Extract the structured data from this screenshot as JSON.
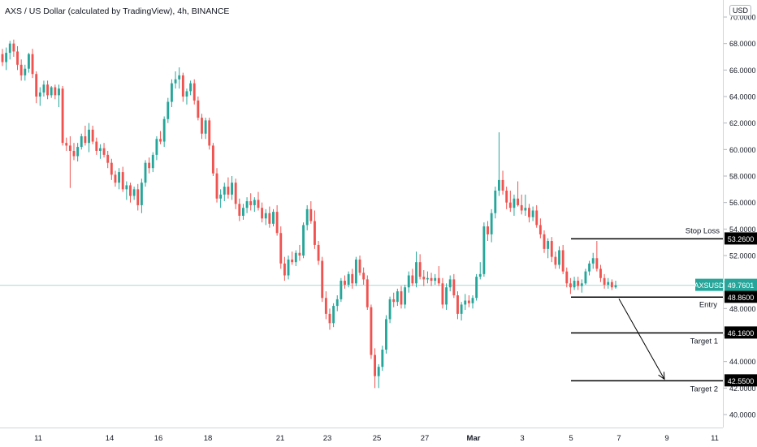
{
  "title": "AXS / US Dollar (calculated by TradingView), 4h, BINANCE",
  "currency_badge": "USD",
  "chart_data": {
    "type": "candlestick",
    "symbol": "AXSUSD",
    "ylim": [
      39.0,
      71.0
    ],
    "y_ticks": [
      "40.0000",
      "42.0000",
      "44.0000",
      "46.0000",
      "48.0000",
      "50.0000",
      "52.0000",
      "54.0000",
      "56.0000",
      "58.0000",
      "60.0000",
      "62.0000",
      "64.0000",
      "66.0000",
      "68.0000",
      "70.0000"
    ],
    "x_ticks": [
      "11",
      "14",
      "16",
      "18",
      "21",
      "23",
      "25",
      "27",
      "Mar",
      "3",
      "5",
      "7",
      "9",
      "11"
    ],
    "colors": {
      "up": "#26a69a",
      "down": "#ef5350",
      "level": "#000000",
      "current": "#26a69a",
      "price_line": "#a8dcd4"
    },
    "current_price": {
      "symbol": "AXSUSD",
      "value": "49.7601"
    },
    "levels": [
      {
        "name": "Stop Loss",
        "value": 53.26,
        "label": "53.2600"
      },
      {
        "name": "Entry",
        "value": 48.86,
        "label": "48.8600"
      },
      {
        "name": "Target 1",
        "value": 46.16,
        "label": "46.1600"
      },
      {
        "name": "Target 2",
        "value": 42.55,
        "label": "42.5500"
      }
    ],
    "candles": [
      [
        67.2,
        67.6,
        66.3,
        66.6
      ],
      [
        66.6,
        67.7,
        66.0,
        67.3
      ],
      [
        67.3,
        68.2,
        66.8,
        68.0
      ],
      [
        68.0,
        68.3,
        67.0,
        67.4
      ],
      [
        67.4,
        67.8,
        66.0,
        66.4
      ],
      [
        66.4,
        66.8,
        65.2,
        65.6
      ],
      [
        65.6,
        66.4,
        65.2,
        66.1
      ],
      [
        66.1,
        67.3,
        65.8,
        67.2
      ],
      [
        67.2,
        67.6,
        65.4,
        65.7
      ],
      [
        65.7,
        65.9,
        63.5,
        64.0
      ],
      [
        64.0,
        64.7,
        63.3,
        64.3
      ],
      [
        64.3,
        65.2,
        64.0,
        64.9
      ],
      [
        64.9,
        65.2,
        63.8,
        64.1
      ],
      [
        64.1,
        64.8,
        63.9,
        64.7
      ],
      [
        64.7,
        64.9,
        63.8,
        64.1
      ],
      [
        64.1,
        64.9,
        63.2,
        64.6
      ],
      [
        64.6,
        64.8,
        60.3,
        60.5
      ],
      [
        60.5,
        60.9,
        59.9,
        60.3
      ],
      [
        60.3,
        61.0,
        57.1,
        59.9
      ],
      [
        59.9,
        60.5,
        59.2,
        59.5
      ],
      [
        59.5,
        60.5,
        59.1,
        60.2
      ],
      [
        60.2,
        61.2,
        60.0,
        61.0
      ],
      [
        61.0,
        61.8,
        60.3,
        60.5
      ],
      [
        60.5,
        62.0,
        59.8,
        61.5
      ],
      [
        61.5,
        61.8,
        60.4,
        60.6
      ],
      [
        60.6,
        60.9,
        59.6,
        59.9
      ],
      [
        59.9,
        60.4,
        59.3,
        60.1
      ],
      [
        60.1,
        60.5,
        59.4,
        59.6
      ],
      [
        59.6,
        59.9,
        58.6,
        59.0
      ],
      [
        59.0,
        59.3,
        57.7,
        58.1
      ],
      [
        58.1,
        58.4,
        57.2,
        57.5
      ],
      [
        57.5,
        58.6,
        57.0,
        58.3
      ],
      [
        58.3,
        58.7,
        56.8,
        57.0
      ],
      [
        57.0,
        57.6,
        56.2,
        57.3
      ],
      [
        57.3,
        57.5,
        56.0,
        56.5
      ],
      [
        56.5,
        57.2,
        56.2,
        57.0
      ],
      [
        57.0,
        57.4,
        55.4,
        55.8
      ],
      [
        55.8,
        57.8,
        55.2,
        57.5
      ],
      [
        57.5,
        59.2,
        57.2,
        59.0
      ],
      [
        59.0,
        59.4,
        58.2,
        58.6
      ],
      [
        58.6,
        59.8,
        58.3,
        59.6
      ],
      [
        59.6,
        61.0,
        59.2,
        60.8
      ],
      [
        60.8,
        61.4,
        60.4,
        60.6
      ],
      [
        60.6,
        62.5,
        60.2,
        62.3
      ],
      [
        62.3,
        63.9,
        62.0,
        63.6
      ],
      [
        63.6,
        65.3,
        63.2,
        65.0
      ],
      [
        65.0,
        65.9,
        64.6,
        65.3
      ],
      [
        65.3,
        66.2,
        64.6,
        65.6
      ],
      [
        65.6,
        65.8,
        63.6,
        64.0
      ],
      [
        64.0,
        64.6,
        63.4,
        64.4
      ],
      [
        64.4,
        65.2,
        64.1,
        65.0
      ],
      [
        65.0,
        65.3,
        63.4,
        63.7
      ],
      [
        63.7,
        64.0,
        62.2,
        62.4
      ],
      [
        62.4,
        62.7,
        60.8,
        61.2
      ],
      [
        61.2,
        62.4,
        60.8,
        62.2
      ],
      [
        62.2,
        62.4,
        60.0,
        60.3
      ],
      [
        60.3,
        60.5,
        58.0,
        58.2
      ],
      [
        58.2,
        58.6,
        56.0,
        56.3
      ],
      [
        56.3,
        57.0,
        55.6,
        56.6
      ],
      [
        56.6,
        57.5,
        56.1,
        57.2
      ],
      [
        57.2,
        57.9,
        56.3,
        56.6
      ],
      [
        56.6,
        58.0,
        56.2,
        57.5
      ],
      [
        57.5,
        57.8,
        55.5,
        55.9
      ],
      [
        55.9,
        56.3,
        54.6,
        55.0
      ],
      [
        55.0,
        55.9,
        54.7,
        55.6
      ],
      [
        55.6,
        56.4,
        55.2,
        56.1
      ],
      [
        56.1,
        56.7,
        55.4,
        55.8
      ],
      [
        55.8,
        56.4,
        55.3,
        56.2
      ],
      [
        56.2,
        56.8,
        55.4,
        55.6
      ],
      [
        55.6,
        56.0,
        54.5,
        54.8
      ],
      [
        54.8,
        55.5,
        54.3,
        55.2
      ],
      [
        55.2,
        55.7,
        54.1,
        54.4
      ],
      [
        54.4,
        55.5,
        54.2,
        55.3
      ],
      [
        55.3,
        55.8,
        53.5,
        53.7
      ],
      [
        53.7,
        54.2,
        51.0,
        51.4
      ],
      [
        51.4,
        51.9,
        50.1,
        50.5
      ],
      [
        50.5,
        52.0,
        50.2,
        51.7
      ],
      [
        51.7,
        52.3,
        51.3,
        51.5
      ],
      [
        51.5,
        52.4,
        51.2,
        52.2
      ],
      [
        52.2,
        52.8,
        51.6,
        52.0
      ],
      [
        52.0,
        54.5,
        51.8,
        54.3
      ],
      [
        54.3,
        55.8,
        53.9,
        55.5
      ],
      [
        55.5,
        56.1,
        54.4,
        54.6
      ],
      [
        54.6,
        55.4,
        52.5,
        52.8
      ],
      [
        52.8,
        53.1,
        51.3,
        51.6
      ],
      [
        51.6,
        51.9,
        48.5,
        48.8
      ],
      [
        48.8,
        49.3,
        47.2,
        47.6
      ],
      [
        47.6,
        48.0,
        46.4,
        46.9
      ],
      [
        46.9,
        48.4,
        46.6,
        48.2
      ],
      [
        48.2,
        49.0,
        47.8,
        48.7
      ],
      [
        48.7,
        50.3,
        48.5,
        50.1
      ],
      [
        50.1,
        50.5,
        49.5,
        49.8
      ],
      [
        49.8,
        50.8,
        49.6,
        50.6
      ],
      [
        50.6,
        51.0,
        49.5,
        49.9
      ],
      [
        49.9,
        51.9,
        49.7,
        51.7
      ],
      [
        51.7,
        52.0,
        50.5,
        50.7
      ],
      [
        50.7,
        51.1,
        49.8,
        50.2
      ],
      [
        50.2,
        50.5,
        47.9,
        48.1
      ],
      [
        48.1,
        48.3,
        44.2,
        44.5
      ],
      [
        44.5,
        45.0,
        42.0,
        42.9
      ],
      [
        42.9,
        43.8,
        42.0,
        43.6
      ],
      [
        43.6,
        45.2,
        43.3,
        44.9
      ],
      [
        44.9,
        47.5,
        44.6,
        47.2
      ],
      [
        47.2,
        48.9,
        46.9,
        48.7
      ],
      [
        48.7,
        49.2,
        48.1,
        48.5
      ],
      [
        48.5,
        49.5,
        48.2,
        49.3
      ],
      [
        49.3,
        49.7,
        48.0,
        48.3
      ],
      [
        48.3,
        49.8,
        48.0,
        49.6
      ],
      [
        49.6,
        50.8,
        49.2,
        50.5
      ],
      [
        50.5,
        51.0,
        49.7,
        49.9
      ],
      [
        49.9,
        52.3,
        49.6,
        51.5
      ],
      [
        51.5,
        52.1,
        50.2,
        50.4
      ],
      [
        50.4,
        50.9,
        49.7,
        50.2
      ],
      [
        50.2,
        50.8,
        49.9,
        50.3
      ],
      [
        50.3,
        50.7,
        49.7,
        50.1
      ],
      [
        50.1,
        50.6,
        49.8,
        50.3
      ],
      [
        50.3,
        51.2,
        49.7,
        49.9
      ],
      [
        49.9,
        50.3,
        48.0,
        48.3
      ],
      [
        48.3,
        49.9,
        47.9,
        49.6
      ],
      [
        49.6,
        50.5,
        49.3,
        50.2
      ],
      [
        50.2,
        50.6,
        48.8,
        49.0
      ],
      [
        49.0,
        49.3,
        47.2,
        47.6
      ],
      [
        47.6,
        48.5,
        47.1,
        48.3
      ],
      [
        48.3,
        49.1,
        47.9,
        48.6
      ],
      [
        48.6,
        49.0,
        48.1,
        48.4
      ],
      [
        48.4,
        49.0,
        48.0,
        48.8
      ],
      [
        48.8,
        50.6,
        48.6,
        50.4
      ],
      [
        50.4,
        51.5,
        50.2,
        50.6
      ],
      [
        50.6,
        54.5,
        50.4,
        54.2
      ],
      [
        54.2,
        54.6,
        53.1,
        53.6
      ],
      [
        53.6,
        55.5,
        53.0,
        55.2
      ],
      [
        55.2,
        57.2,
        54.8,
        56.9
      ],
      [
        56.9,
        61.3,
        56.5,
        57.7
      ],
      [
        57.7,
        58.4,
        56.6,
        56.9
      ],
      [
        56.9,
        57.2,
        55.5,
        56.0
      ],
      [
        56.0,
        56.9,
        55.3,
        55.6
      ],
      [
        55.6,
        56.6,
        55.0,
        56.3
      ],
      [
        56.3,
        57.6,
        55.7,
        55.8
      ],
      [
        55.8,
        56.6,
        55.1,
        55.4
      ],
      [
        55.4,
        56.6,
        55.0,
        55.6
      ],
      [
        55.6,
        55.9,
        54.5,
        54.9
      ],
      [
        54.9,
        55.7,
        54.6,
        55.4
      ],
      [
        55.4,
        55.8,
        54.1,
        54.3
      ],
      [
        54.3,
        54.8,
        53.3,
        53.6
      ],
      [
        53.6,
        53.9,
        52.2,
        52.5
      ],
      [
        52.5,
        53.3,
        51.8,
        53.1
      ],
      [
        53.1,
        53.4,
        51.5,
        51.9
      ],
      [
        51.9,
        52.3,
        51.0,
        51.3
      ],
      [
        51.3,
        52.7,
        51.0,
        52.4
      ],
      [
        52.4,
        52.8,
        50.6,
        50.8
      ],
      [
        50.8,
        51.1,
        49.6,
        49.9
      ],
      [
        49.9,
        50.3,
        49.1,
        49.6
      ],
      [
        49.6,
        50.4,
        49.4,
        50.1
      ],
      [
        50.1,
        50.4,
        49.4,
        49.7
      ],
      [
        49.7,
        50.2,
        49.2,
        49.9
      ],
      [
        49.9,
        51.0,
        49.8,
        50.8
      ],
      [
        50.8,
        51.6,
        50.5,
        51.4
      ],
      [
        51.4,
        52.2,
        51.0,
        51.8
      ],
      [
        51.8,
        53.1,
        50.8,
        51.0
      ],
      [
        51.0,
        51.3,
        50.0,
        50.3
      ],
      [
        50.3,
        50.6,
        49.5,
        49.8
      ],
      [
        49.8,
        50.3,
        49.5,
        50.0
      ],
      [
        50.0,
        50.2,
        49.4,
        49.6
      ],
      [
        49.6,
        50.1,
        49.5,
        49.76
      ]
    ]
  },
  "side_labels": {
    "stop_loss": "Stop Loss",
    "entry": "Entry",
    "target1": "Target 1",
    "target2": "Target 2"
  }
}
